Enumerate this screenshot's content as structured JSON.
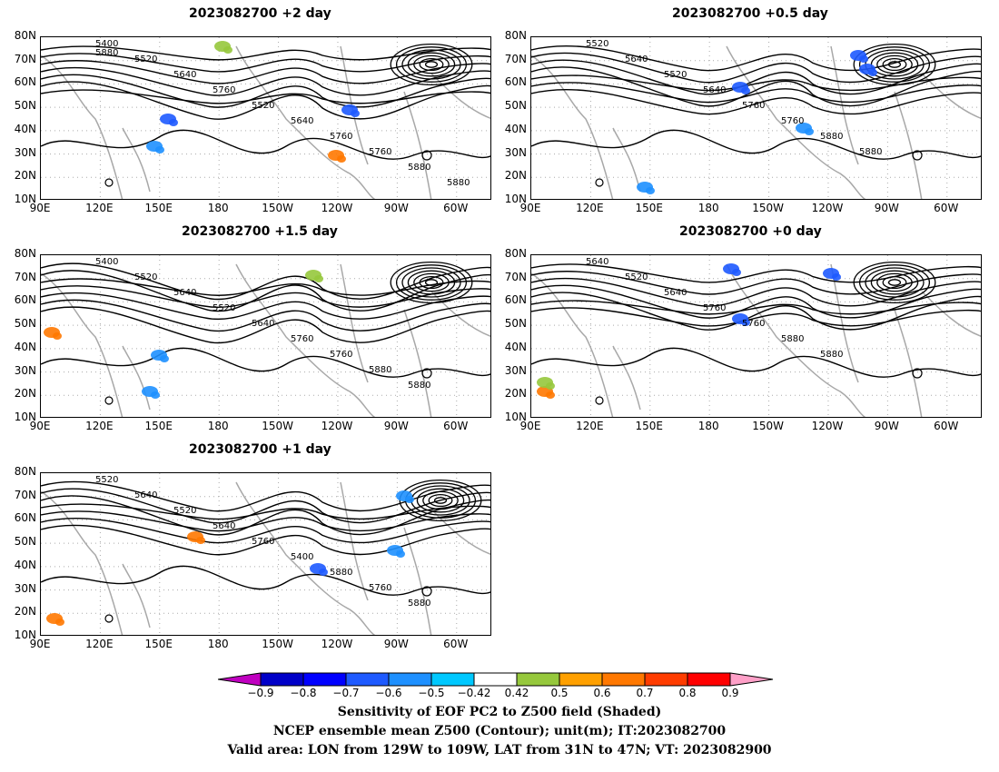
{
  "panels": [
    {
      "id": "p2",
      "title": "2023082700 +2 day"
    },
    {
      "id": "p05",
      "title": "2023082700 +0.5 day"
    },
    {
      "id": "p15",
      "title": "2023082700 +1.5 day"
    },
    {
      "id": "p0",
      "title": "2023082700 +0 day"
    },
    {
      "id": "p1",
      "title": "2023082700 +1 day"
    }
  ],
  "y_ticks": [
    "80N",
    "70N",
    "60N",
    "50N",
    "40N",
    "30N",
    "20N",
    "10N"
  ],
  "x_ticks": [
    "90E",
    "120E",
    "150E",
    "180",
    "150W",
    "120W",
    "90W",
    "60W"
  ],
  "contour_labels": {
    "p2": [
      "5400",
      "5520",
      "5640",
      "5760",
      "5520",
      "5640",
      "5760",
      "5760",
      "5880",
      "5880",
      "5880"
    ],
    "p05": [
      "5520",
      "5640",
      "5520",
      "5640",
      "5760",
      "5760",
      "5880",
      "5880"
    ],
    "p15": [
      "5400",
      "5520",
      "5640",
      "5520",
      "5640",
      "5760",
      "5760",
      "5880",
      "5880"
    ],
    "p0": [
      "5640",
      "5520",
      "5640",
      "5760",
      "5760",
      "5880",
      "5880"
    ],
    "p1": [
      "5520",
      "5640",
      "5520",
      "5640",
      "5760",
      "5400",
      "5880",
      "5760",
      "5880"
    ]
  },
  "colorbar": {
    "labels": [
      "−0.9",
      "−0.8",
      "−0.7",
      "−0.6",
      "−0.5",
      "−0.42",
      "0.42",
      "0.5",
      "0.6",
      "0.7",
      "0.8",
      "0.9"
    ],
    "colors": [
      "#c000c0",
      "#0000c8",
      "#0000ff",
      "#1e5aff",
      "#1e90ff",
      "#00c8ff",
      "#ffffff",
      "#96c83c",
      "#ffa000",
      "#ff7800",
      "#ff3c00",
      "#ff0000",
      "#ffa0c8"
    ]
  },
  "caption": {
    "line1": "Sensitivity of EOF PC2 to Z500 field (Shaded)",
    "line2": "NCEP ensemble mean Z500 (Contour); unit(m); IT:2023082700",
    "line3": "Valid area: LON from 129W to 109W, LAT from 31N to 47N; VT: 2023082900"
  }
}
